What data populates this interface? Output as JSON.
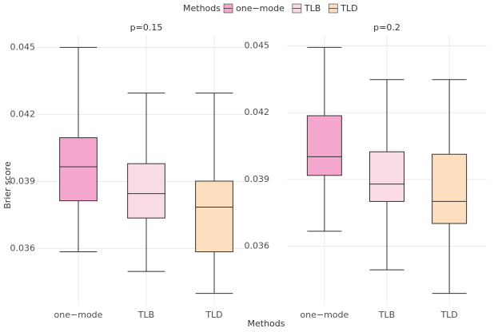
{
  "legend_title": "Methods",
  "xlabel": "Methods",
  "ylabel": "Brier score",
  "chart_data": [
    {
      "type": "box",
      "title": "p=0.15",
      "ylim": [
        0.03345,
        0.04555
      ],
      "yticks": [
        0.036,
        0.039,
        0.042,
        0.045
      ],
      "grid": true,
      "boxes": [
        {
          "name": "one−mode",
          "color": "#f4a6cc",
          "whisker_low": 0.03586,
          "q1": 0.03814,
          "median": 0.03966,
          "q3": 0.04096,
          "whisker_high": 0.045
        },
        {
          "name": "TLB",
          "color": "#f9dbe3",
          "whisker_low": 0.03498,
          "q1": 0.03737,
          "median": 0.03846,
          "q3": 0.0398,
          "whisker_high": 0.04296
        },
        {
          "name": "TLD",
          "color": "#fddfbf",
          "whisker_low": 0.034,
          "q1": 0.03586,
          "median": 0.03786,
          "q3": 0.03902,
          "whisker_high": 0.04296
        }
      ]
    },
    {
      "type": "box",
      "title": "p=0.2",
      "ylim": [
        0.03333,
        0.04548
      ],
      "yticks": [
        0.036,
        0.039,
        0.042,
        0.045
      ],
      "grid": true,
      "boxes": [
        {
          "name": "one−mode",
          "color": "#f4a6cc",
          "whisker_low": 0.03667,
          "q1": 0.03918,
          "median": 0.04002,
          "q3": 0.04186,
          "whisker_high": 0.04493
        },
        {
          "name": "TLB",
          "color": "#f9dbe3",
          "whisker_low": 0.03494,
          "q1": 0.03801,
          "median": 0.03879,
          "q3": 0.04024,
          "whisker_high": 0.04348
        },
        {
          "name": "TLD",
          "color": "#fddfbf",
          "whisker_low": 0.03388,
          "q1": 0.03702,
          "median": 0.03801,
          "q3": 0.04013,
          "whisker_high": 0.04348
        }
      ]
    }
  ]
}
